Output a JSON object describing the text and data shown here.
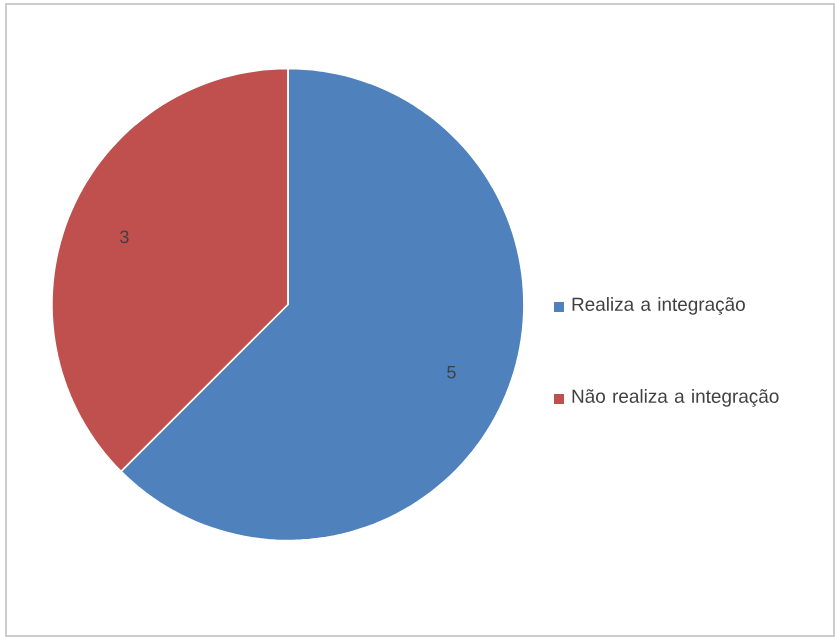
{
  "chart_data": {
    "type": "pie",
    "categories": [
      "Realiza a integração",
      "Não realiza a integração"
    ],
    "values": [
      5,
      3
    ],
    "colors": [
      "#4f81bd",
      "#c0504d"
    ],
    "data_labels": true,
    "legend": "right"
  }
}
